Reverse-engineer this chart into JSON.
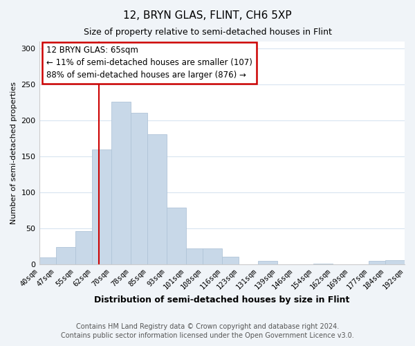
{
  "title": "12, BRYN GLAS, FLINT, CH6 5XP",
  "subtitle": "Size of property relative to semi-detached houses in Flint",
  "xlabel": "Distribution of semi-detached houses by size in Flint",
  "ylabel": "Number of semi-detached properties",
  "footer_line1": "Contains HM Land Registry data © Crown copyright and database right 2024.",
  "footer_line2": "Contains public sector information licensed under the Open Government Licence v3.0.",
  "annotation_title": "12 BRYN GLAS: 65sqm",
  "annotation_line2": "← 11% of semi-detached houses are smaller (107)",
  "annotation_line3": "88% of semi-detached houses are larger (876) →",
  "property_size": 65,
  "bar_color": "#c8d8e8",
  "bar_edge_color": "#b0c4d8",
  "annotation_box_color": "#ffffff",
  "annotation_box_edge": "#cc0000",
  "vline_color": "#cc0000",
  "bin_edges": [
    40,
    47,
    55,
    62,
    70,
    78,
    85,
    93,
    101,
    108,
    116,
    123,
    131,
    139,
    146,
    154,
    162,
    169,
    177,
    184,
    192
  ],
  "bin_labels": [
    "40sqm",
    "47sqm",
    "55sqm",
    "62sqm",
    "70sqm",
    "78sqm",
    "85sqm",
    "93sqm",
    "101sqm",
    "108sqm",
    "116sqm",
    "123sqm",
    "131sqm",
    "139sqm",
    "146sqm",
    "154sqm",
    "162sqm",
    "169sqm",
    "177sqm",
    "184sqm",
    "192sqm"
  ],
  "counts": [
    9,
    24,
    46,
    160,
    226,
    211,
    181,
    79,
    22,
    22,
    10,
    0,
    4,
    0,
    0,
    1,
    0,
    0,
    4,
    5
  ],
  "ylim": [
    0,
    310
  ],
  "yticks": [
    0,
    50,
    100,
    150,
    200,
    250,
    300
  ],
  "plot_bg_color": "#ffffff",
  "fig_bg_color": "#f0f4f8",
  "grid_color": "#d8e4f0",
  "title_fontsize": 11,
  "subtitle_fontsize": 9,
  "axis_label_fontsize": 9,
  "tick_fontsize": 7.5,
  "footer_fontsize": 7,
  "annotation_fontsize": 8.5
}
